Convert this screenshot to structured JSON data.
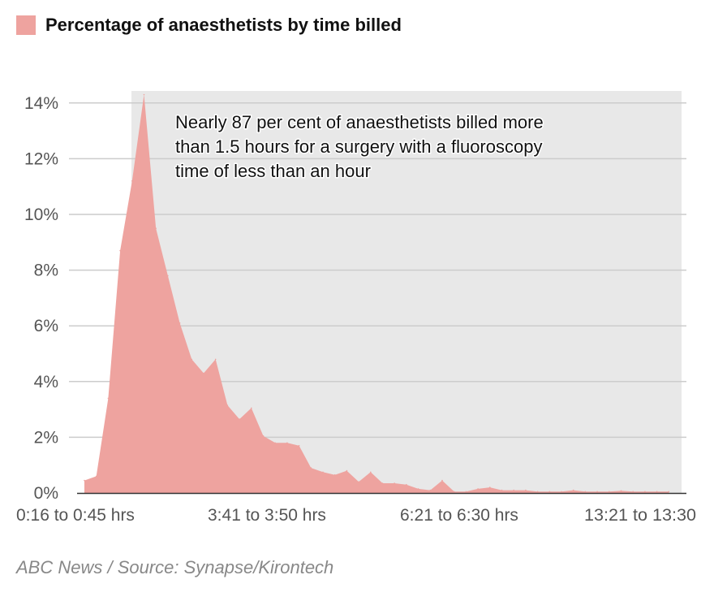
{
  "legend": {
    "label": "Percentage of anaesthetists by time billed",
    "color": "#eea39f"
  },
  "source": "ABC News / Source: Synapse/Kirontech",
  "colors": {
    "area": "#eea39f",
    "highlight": "#e8e8e8",
    "grid": "#cccccc",
    "axis": "#333333"
  },
  "chart_data": {
    "type": "area",
    "title": "Percentage of anaesthetists by time billed",
    "xlabel": "",
    "ylabel": "",
    "y_ticks": [
      "0%",
      "2%",
      "4%",
      "6%",
      "8%",
      "10%",
      "12%",
      "14%"
    ],
    "ylim": [
      0,
      14
    ],
    "x_tick_labels": [
      "0:16 to 0:45 hrs",
      "3:41 to 3:50 hrs",
      "6:21 to 6:30 hrs",
      "13:21 to 13:30"
    ],
    "grid": true,
    "highlight_region": "from the fifth bin to the end (more than 1.5 hours)",
    "annotation": [
      "Nearly 87 per cent of anaesthetists billed more",
      "than 1.5 hours for a surgery with a fluoroscopy",
      "time of less than an hour"
    ],
    "values": [
      0.45,
      0.6,
      3.4,
      8.7,
      11.2,
      14.3,
      9.5,
      7.8,
      6.1,
      4.8,
      4.3,
      4.8,
      3.15,
      2.65,
      3.05,
      2.05,
      1.8,
      1.8,
      1.7,
      0.9,
      0.75,
      0.65,
      0.8,
      0.4,
      0.75,
      0.35,
      0.35,
      0.3,
      0.15,
      0.1,
      0.45,
      0.05,
      0.05,
      0.15,
      0.2,
      0.1,
      0.1,
      0.1,
      0.05,
      0.05,
      0.05,
      0.1,
      0.05,
      0.05,
      0.05,
      0.08,
      0.05,
      0.05,
      0.05,
      0.05
    ]
  }
}
